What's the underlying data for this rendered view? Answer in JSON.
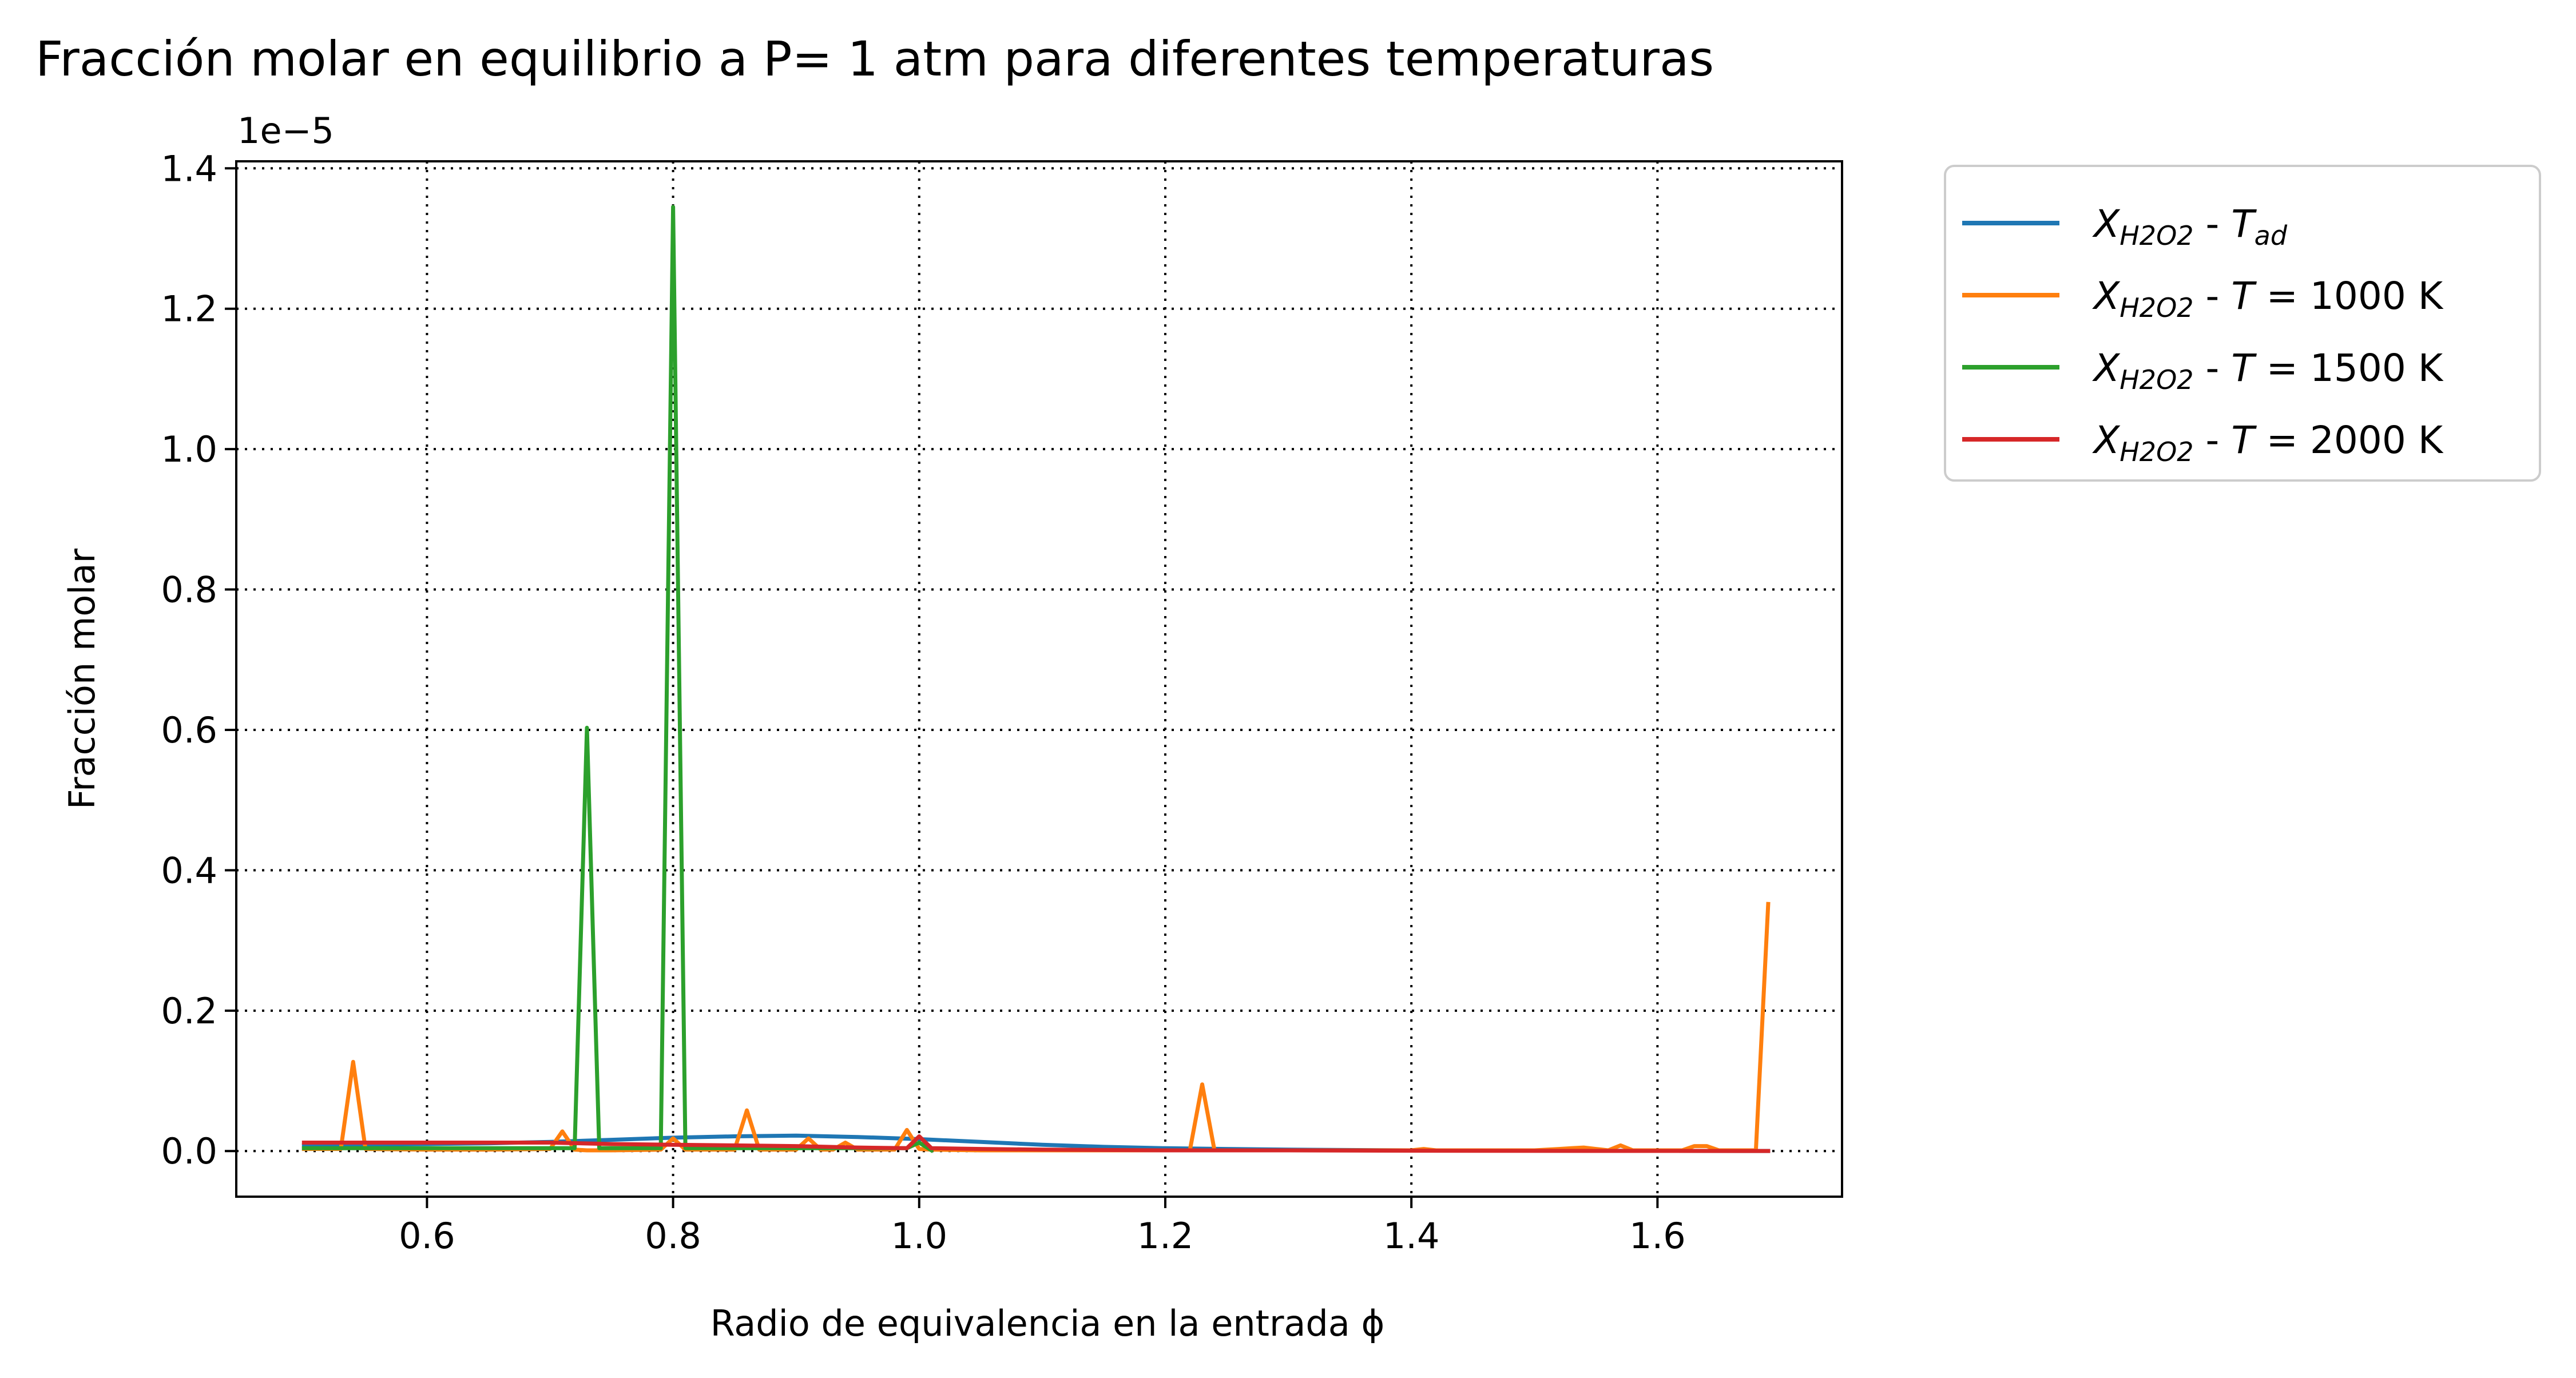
{
  "chart_data": {
    "type": "line",
    "title": "Fracción molar en equilibrio a P= 1 atm para diferentes temperaturas",
    "xlabel": "Radio de equivalencia en la entrada ϕ",
    "ylabel": "Fracción molar",
    "y_offset_text": "1e−5",
    "xlim": [
      0.445,
      1.75
    ],
    "ylim": [
      -0.065,
      1.41
    ],
    "xticks": [
      0.6,
      0.8,
      1.0,
      1.2,
      1.4,
      1.6
    ],
    "xtick_labels": [
      "0.6",
      "0.8",
      "1.0",
      "1.2",
      "1.4",
      "1.6"
    ],
    "yticks": [
      0.0,
      0.2,
      0.4,
      0.6,
      0.8,
      1.0,
      1.2,
      1.4
    ],
    "ytick_labels": [
      "0.0",
      "0.2",
      "0.4",
      "0.6",
      "0.8",
      "1.0",
      "1.2",
      "1.4"
    ],
    "grid": true,
    "legend_position": "outside-right-top",
    "series": [
      {
        "name": "X_{H2O2} - T_{ad}",
        "legend": {
          "X": "X",
          "sub": "H2O2",
          "sep": " - ",
          "T": "T",
          "tsub": "ad",
          "rest": ""
        },
        "color": "#1f77b4",
        "x": [
          0.5,
          0.55,
          0.6,
          0.65,
          0.7,
          0.75,
          0.8,
          0.85,
          0.9,
          0.95,
          1.0,
          1.05,
          1.1,
          1.15,
          1.2,
          1.25,
          1.3,
          1.4,
          1.5,
          1.6,
          1.69
        ],
        "y": [
          0.008,
          0.009,
          0.01,
          0.011,
          0.013,
          0.016,
          0.019,
          0.021,
          0.022,
          0.02,
          0.017,
          0.013,
          0.009,
          0.006,
          0.004,
          0.003,
          0.002,
          0.001,
          0.0005,
          0.0002,
          0.0001
        ]
      },
      {
        "name": "X_{H2O2} - T = 1000 K",
        "legend": {
          "X": "X",
          "sub": "H2O2",
          "sep": " - ",
          "T": "T",
          "tsub": "",
          "rest": " = 1000 K"
        },
        "color": "#ff7f0e",
        "x": [
          0.5,
          0.53,
          0.54,
          0.55,
          0.6,
          0.65,
          0.7,
          0.71,
          0.72,
          0.73,
          0.74,
          0.75,
          0.79,
          0.8,
          0.81,
          0.82,
          0.85,
          0.86,
          0.87,
          0.9,
          0.91,
          0.92,
          0.93,
          0.94,
          0.95,
          0.98,
          0.99,
          1.0,
          1.01,
          1.05,
          1.1,
          1.2,
          1.22,
          1.23,
          1.24,
          1.3,
          1.4,
          1.41,
          1.42,
          1.5,
          1.52,
          1.53,
          1.54,
          1.55,
          1.56,
          1.57,
          1.58,
          1.6,
          1.62,
          1.63,
          1.64,
          1.65,
          1.67,
          1.68,
          1.69
        ],
        "y": [
          0.003,
          0.003,
          0.127,
          0.003,
          0.002,
          0.002,
          0.003,
          0.028,
          0.002,
          0.001,
          0.001,
          0.001,
          0.002,
          0.018,
          0.002,
          0.002,
          0.002,
          0.058,
          0.002,
          0.002,
          0.018,
          0.002,
          0.002,
          0.012,
          0.002,
          0.002,
          0.03,
          0.003,
          0.002,
          0.001,
          0.001,
          0.001,
          0.001,
          0.095,
          0.001,
          0.001,
          0.001,
          0.003,
          0.001,
          0.001,
          0.003,
          0.004,
          0.005,
          0.003,
          0.001,
          0.008,
          0.001,
          0.001,
          0.001,
          0.007,
          0.007,
          0.001,
          0.001,
          0.001,
          0.352
        ]
      },
      {
        "name": "X_{H2O2} - T = 1500 K",
        "legend": {
          "X": "X",
          "sub": "H2O2",
          "sep": " - ",
          "T": "T",
          "tsub": "",
          "rest": " = 1500 K"
        },
        "color": "#2ca02c",
        "x": [
          0.5,
          0.55,
          0.6,
          0.65,
          0.7,
          0.72,
          0.73,
          0.74,
          0.75,
          0.79,
          0.8,
          0.81,
          0.85,
          0.9,
          0.95,
          0.99,
          1.0,
          1.01
        ],
        "y": [
          0.004,
          0.004,
          0.004,
          0.004,
          0.004,
          0.004,
          0.603,
          0.004,
          0.004,
          0.004,
          1.345,
          0.004,
          0.004,
          0.004,
          0.004,
          0.004,
          0.012,
          0.001
        ]
      },
      {
        "name": "X_{H2O2} - T = 2000 K",
        "legend": {
          "X": "X",
          "sub": "H2O2",
          "sep": " - ",
          "T": "T",
          "tsub": "",
          "rest": " = 2000 K"
        },
        "color": "#d62728",
        "x": [
          0.5,
          0.6,
          0.7,
          0.75,
          0.8,
          0.85,
          0.9,
          0.95,
          0.99,
          1.0,
          1.01,
          1.05,
          1.1,
          1.2,
          1.3,
          1.4,
          1.5,
          1.6,
          1.69
        ],
        "y": [
          0.012,
          0.012,
          0.012,
          0.01,
          0.009,
          0.008,
          0.007,
          0.005,
          0.004,
          0.021,
          0.004,
          0.003,
          0.002,
          0.001,
          0.001,
          0.0005,
          0.0003,
          0.0002,
          0.0001
        ]
      }
    ]
  }
}
